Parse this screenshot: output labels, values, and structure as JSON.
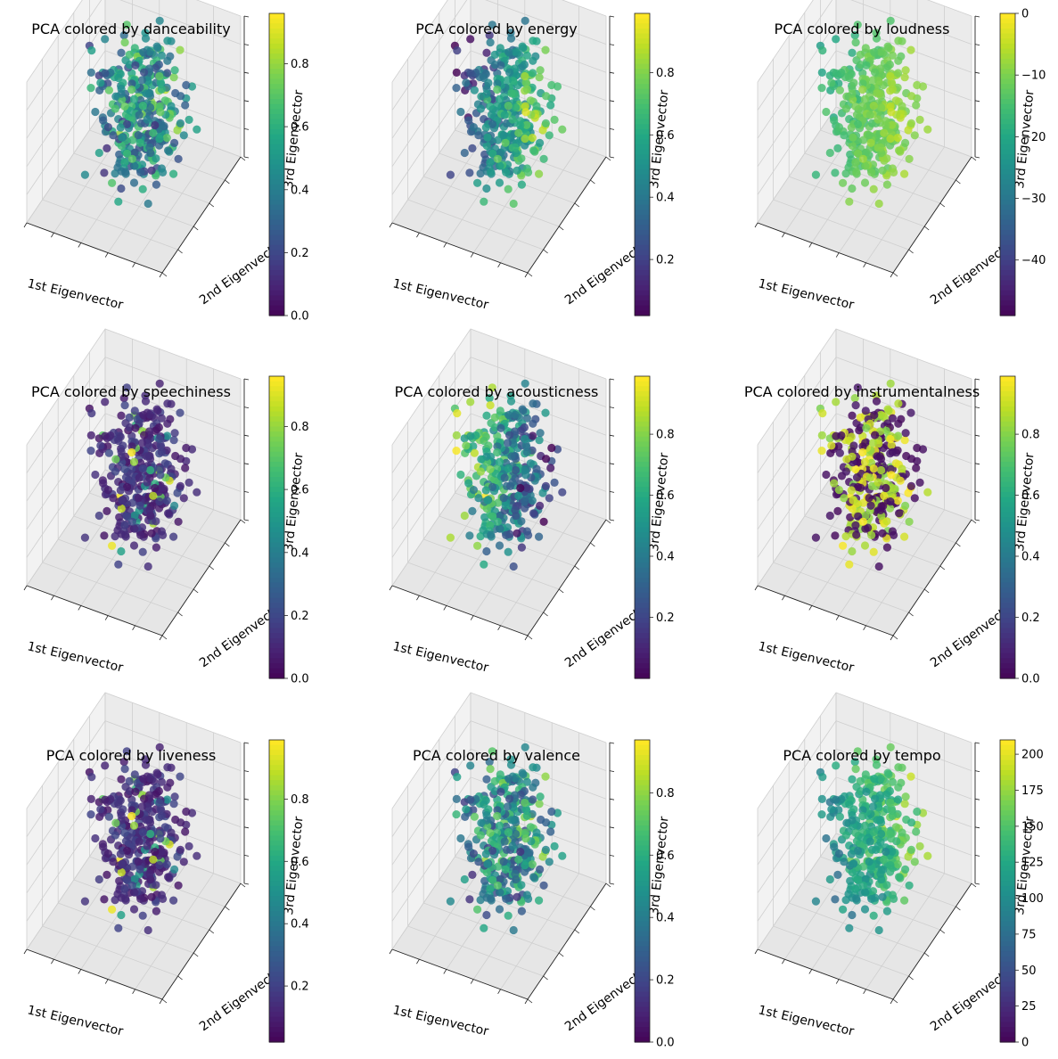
{
  "figure": {
    "title": ""
  },
  "chart_data": [
    {
      "type": "scatter3d",
      "title": "PCA colored by danceability",
      "feature": "danceability",
      "xlabel": "1st Eigenvector",
      "ylabel": "2nd Eigenvector",
      "zlabel": "3rd Eigenvector",
      "colorbar": {
        "min": 0.0,
        "max": 0.96,
        "ticks": [
          "0.0",
          "0.2",
          "0.4",
          "0.6",
          "0.8"
        ],
        "tick_values": [
          0.0,
          0.2,
          0.4,
          0.6,
          0.8
        ]
      },
      "distribution": "mixed",
      "colormap": "viridis"
    },
    {
      "type": "scatter3d",
      "title": "PCA colored by energy",
      "feature": "energy",
      "xlabel": "1st Eigenvector",
      "ylabel": "2nd Eigenvector",
      "zlabel": "3rd Eigenvector",
      "colorbar": {
        "min": 0.02,
        "max": 0.99,
        "ticks": [
          "0.2",
          "0.4",
          "0.6",
          "0.8"
        ],
        "tick_values": [
          0.2,
          0.4,
          0.6,
          0.8
        ]
      },
      "distribution": "gradient_x",
      "colormap": "viridis"
    },
    {
      "type": "scatter3d",
      "title": "PCA colored by loudness",
      "feature": "loudness",
      "xlabel": "1st Eigenvector",
      "ylabel": "2nd Eigenvector",
      "zlabel": "3rd Eigenvector",
      "colorbar": {
        "min": -49,
        "max": 0,
        "ticks": [
          "−40",
          "−30",
          "−20",
          "−10",
          "0"
        ],
        "tick_values": [
          -40,
          -30,
          -20,
          -10,
          0
        ]
      },
      "distribution": "high_gradient",
      "colormap": "viridis"
    },
    {
      "type": "scatter3d",
      "title": "PCA colored by speechiness",
      "feature": "speechiness",
      "xlabel": "1st Eigenvector",
      "ylabel": "2nd Eigenvector",
      "zlabel": "3rd Eigenvector",
      "colorbar": {
        "min": 0.0,
        "max": 0.96,
        "ticks": [
          "0.0",
          "0.2",
          "0.4",
          "0.6",
          "0.8"
        ],
        "tick_values": [
          0.0,
          0.2,
          0.4,
          0.6,
          0.8
        ]
      },
      "distribution": "mostly_low",
      "colormap": "viridis"
    },
    {
      "type": "scatter3d",
      "title": "PCA colored by acousticness",
      "feature": "acousticness",
      "xlabel": "1st Eigenvector",
      "ylabel": "2nd Eigenvector",
      "zlabel": "3rd Eigenvector",
      "colorbar": {
        "min": 0.0,
        "max": 0.99,
        "ticks": [
          "0.2",
          "0.4",
          "0.6",
          "0.8"
        ],
        "tick_values": [
          0.2,
          0.4,
          0.6,
          0.8
        ]
      },
      "distribution": "gradient_x_inverse",
      "colormap": "viridis"
    },
    {
      "type": "scatter3d",
      "title": "PCA colored by instrumentalness",
      "feature": "instrumentalness",
      "xlabel": "1st Eigenvector",
      "ylabel": "2nd Eigenvector",
      "zlabel": "3rd Eigenvector",
      "colorbar": {
        "min": 0.0,
        "max": 0.99,
        "ticks": [
          "0.0",
          "0.2",
          "0.4",
          "0.6",
          "0.8"
        ],
        "tick_values": [
          0.0,
          0.2,
          0.4,
          0.6,
          0.8
        ]
      },
      "distribution": "bimodal",
      "colormap": "viridis"
    },
    {
      "type": "scatter3d",
      "title": "PCA colored by liveness",
      "feature": "liveness",
      "xlabel": "1st Eigenvector",
      "ylabel": "2nd Eigenvector",
      "zlabel": "3rd Eigenvector",
      "colorbar": {
        "min": 0.02,
        "max": 0.99,
        "ticks": [
          "0.2",
          "0.4",
          "0.6",
          "0.8"
        ],
        "tick_values": [
          0.2,
          0.4,
          0.6,
          0.8
        ]
      },
      "distribution": "mostly_low",
      "colormap": "viridis"
    },
    {
      "type": "scatter3d",
      "title": "PCA colored by valence",
      "feature": "valence",
      "xlabel": "1st Eigenvector",
      "ylabel": "2nd Eigenvector",
      "zlabel": "3rd Eigenvector",
      "colorbar": {
        "min": 0.0,
        "max": 0.97,
        "ticks": [
          "0.0",
          "0.2",
          "0.4",
          "0.6",
          "0.8"
        ],
        "tick_values": [
          0.0,
          0.2,
          0.4,
          0.6,
          0.8
        ]
      },
      "distribution": "mixed",
      "colormap": "viridis"
    },
    {
      "type": "scatter3d",
      "title": "PCA colored by tempo",
      "feature": "tempo",
      "xlabel": "1st Eigenvector",
      "ylabel": "2nd Eigenvector",
      "zlabel": "3rd Eigenvector",
      "colorbar": {
        "min": 0,
        "max": 210,
        "ticks": [
          "0",
          "25",
          "50",
          "75",
          "100",
          "125",
          "150",
          "175",
          "200"
        ],
        "tick_values": [
          0,
          25,
          50,
          75,
          100,
          125,
          150,
          175,
          200
        ]
      },
      "distribution": "gradient_y",
      "colormap": "viridis"
    }
  ]
}
